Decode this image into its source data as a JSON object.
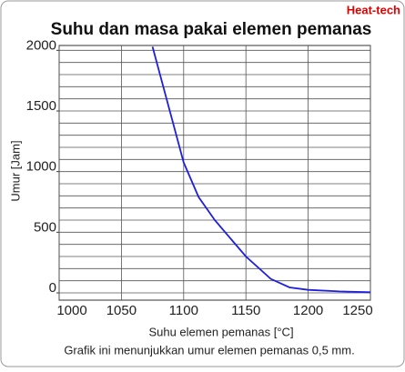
{
  "chart_data": {
    "type": "line",
    "title": "Suhu dan masa pakai elemen pemanas",
    "brand": "Heat-tech",
    "x_label": "Suhu elemen pemanas [°C]",
    "y_label": "Umur [Jam]",
    "caption": "Grafik ini menunjukkan umur elemen pemanas 0,5 mm.",
    "x": [
      1075,
      1100,
      1112,
      1125,
      1150,
      1170,
      1185,
      1200,
      1225,
      1250
    ],
    "series": [
      {
        "name": "Umur",
        "color": "#1f1fe0",
        "values": [
          2030,
          1075,
          790,
          600,
          300,
          115,
          45,
          25,
          12,
          5
        ]
      }
    ],
    "xlim": [
      1000,
      1250
    ],
    "xticks": [
      1000,
      1050,
      1100,
      1150,
      1200,
      1250
    ],
    "ylim": [
      -60,
      2040
    ],
    "yticks": [
      0,
      500,
      1000,
      1500,
      2000
    ],
    "ygrid": [
      0,
      100,
      200,
      300,
      400,
      500,
      600,
      700,
      800,
      900,
      1000,
      1100,
      1200,
      1300,
      1400,
      1500,
      1600,
      1700,
      1800,
      1900,
      2000
    ],
    "grid": true
  }
}
